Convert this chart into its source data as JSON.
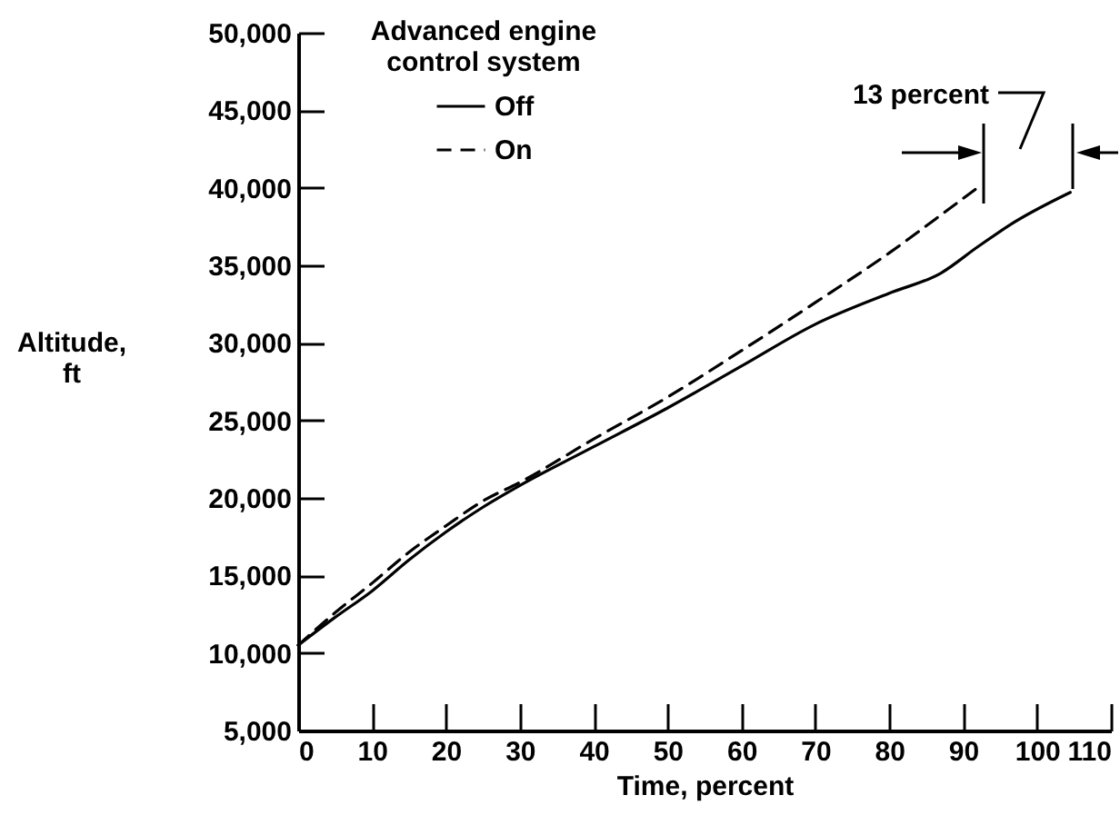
{
  "chart_data": {
    "type": "line",
    "xlabel": "Time, percent",
    "ylabel": "Altitude, ft",
    "legend_title": "Advanced engine control system",
    "x": [
      0,
      5,
      10,
      15,
      20,
      25,
      30,
      40,
      50,
      60,
      70,
      80,
      87,
      92,
      97,
      104.5
    ],
    "series": [
      {
        "name": "Off",
        "color": "#000000",
        "line_style": "solid",
        "values": [
          10500,
          12300,
          14000,
          16000,
          17800,
          19400,
          20800,
          23300,
          25800,
          28500,
          31200,
          33200,
          34500,
          36200,
          37800,
          39700
        ]
      },
      {
        "name": "On",
        "color": "#000000",
        "line_style": "dashed",
        "x": [
          0,
          5,
          10,
          15,
          20,
          25,
          30,
          40,
          50,
          60,
          70,
          80,
          88,
          92.5
        ],
        "values": [
          10500,
          12600,
          14500,
          16500,
          18200,
          19800,
          21000,
          23800,
          26500,
          29500,
          32600,
          35800,
          38600,
          40200
        ]
      }
    ],
    "xlim": [
      0,
      110
    ],
    "xticks": [
      0,
      10,
      20,
      30,
      40,
      50,
      60,
      70,
      80,
      90,
      100,
      110
    ],
    "ylim": [
      5000,
      50000
    ],
    "yticks": [
      {
        "value": 5000,
        "label": "5,000"
      },
      {
        "value": 10000,
        "label": "10,000"
      },
      {
        "value": 15000,
        "label": "15,000"
      },
      {
        "value": 20000,
        "label": "20,000"
      },
      {
        "value": 25000,
        "label": "25,000"
      },
      {
        "value": 30000,
        "label": "30,000"
      },
      {
        "value": 35000,
        "label": "35,000"
      },
      {
        "value": 40000,
        "label": "40,000"
      },
      {
        "value": 45000,
        "label": "45,000"
      },
      {
        "value": 50000,
        "label": "50,000"
      }
    ],
    "grid": false,
    "legend": "top left",
    "annotations": [
      "13 percent"
    ]
  }
}
